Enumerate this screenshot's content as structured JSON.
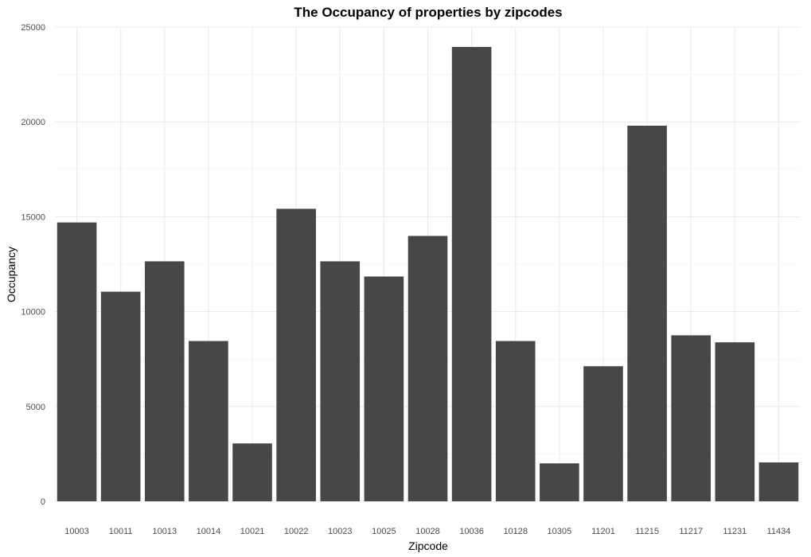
{
  "chart_data": {
    "type": "bar",
    "title": "The Occupancy of properties by zipcodes",
    "xlabel": "Zipcode",
    "ylabel": "Occupancy",
    "categories": [
      "10003",
      "10011",
      "10013",
      "10014",
      "10021",
      "10022",
      "10023",
      "10025",
      "10028",
      "10036",
      "10128",
      "10305",
      "11201",
      "11215",
      "11217",
      "11231",
      "11434"
    ],
    "values": [
      14700,
      11050,
      12650,
      8450,
      3050,
      15420,
      12650,
      11850,
      13990,
      23950,
      8450,
      2000,
      7120,
      19800,
      8750,
      8380,
      2050
    ],
    "ylim": [
      0,
      25000
    ],
    "yticks": [
      0,
      5000,
      10000,
      15000,
      20000,
      25000
    ],
    "ytick_labels": [
      "0",
      "5000",
      "10000",
      "15000",
      "20000",
      "25000"
    ],
    "grid": true,
    "bar_color": "#474747",
    "legend": "none"
  }
}
